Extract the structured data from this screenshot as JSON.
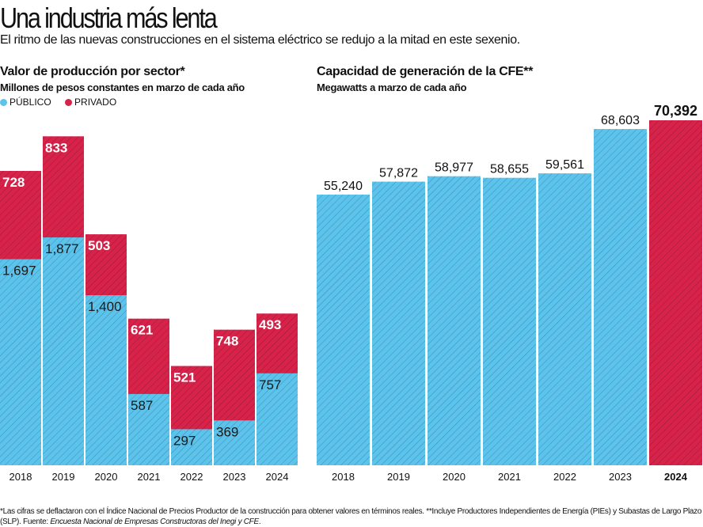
{
  "title": "Una industria más lenta",
  "subtitle": "El ritmo de las nuevas construcciones en el sistema eléctrico se redujo a la mitad en este sexenio.",
  "colors": {
    "publico": "#5bc3ec",
    "privado": "#d7234a"
  },
  "chart_data": [
    {
      "type": "bar",
      "stacked": true,
      "title": "Valor de producción por sector*",
      "subtitle": "Millones de pesos constantes en marzo de cada año",
      "legend": [
        "PÚBLICO",
        "PRIVADO"
      ],
      "legend_placement": "top-left",
      "categories": [
        "2018",
        "2019",
        "2020",
        "2021",
        "2022",
        "2023",
        "2024"
      ],
      "series": [
        {
          "name": "PÚBLICO",
          "values": [
            1697,
            1877,
            1400,
            587,
            297,
            369,
            757
          ]
        },
        {
          "name": "PRIVADO",
          "values": [
            728,
            833,
            503,
            621,
            521,
            748,
            493
          ]
        }
      ],
      "value_labels": {
        "PÚBLICO": [
          "1,697",
          "1,877",
          "1,400",
          "587",
          "297",
          "369",
          "757"
        ],
        "PRIVADO": [
          "728",
          "833",
          "503",
          "621",
          "521",
          "748",
          "493"
        ]
      },
      "ylim": [
        0,
        2710
      ]
    },
    {
      "type": "bar",
      "title": "Capacidad de generación de la CFE**",
      "subtitle": "Megawatts a marzo de cada año",
      "categories": [
        "2018",
        "2019",
        "2020",
        "2021",
        "2022",
        "2023",
        "2024"
      ],
      "values": [
        55240,
        57872,
        58977,
        58655,
        59561,
        68603,
        70392
      ],
      "value_labels": [
        "55,240",
        "57,872",
        "58,977",
        "58,655",
        "59,561",
        "68,603",
        "70,392"
      ],
      "highlight": "2024",
      "ylim": [
        0,
        70392
      ]
    }
  ],
  "footnote": {
    "text": "*Las cifras se deflactaron con el Índice Nacional de Precios Productor de la construcción para obtener valores en términos reales. **Incluye Productores Independientes de Energía (PIEs) y Subastas de Largo Plazo (SLP). Fuente: ",
    "source": "Encuesta Nacional de Empresas Constructoras del Inegi y CFE",
    "end": "."
  }
}
